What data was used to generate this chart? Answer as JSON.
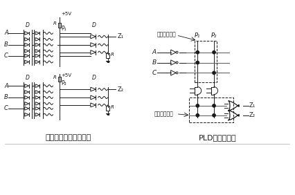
{
  "title_left": "可编程与或阵列电路图",
  "title_right": "PLD表示逻辑图",
  "label_and_array": "可编程与阵列",
  "label_or_array": "可编程或阵列",
  "bg_color": "#ffffff",
  "line_color": "#1a1a1a",
  "font_size_title": 9,
  "font_size_small": 6
}
